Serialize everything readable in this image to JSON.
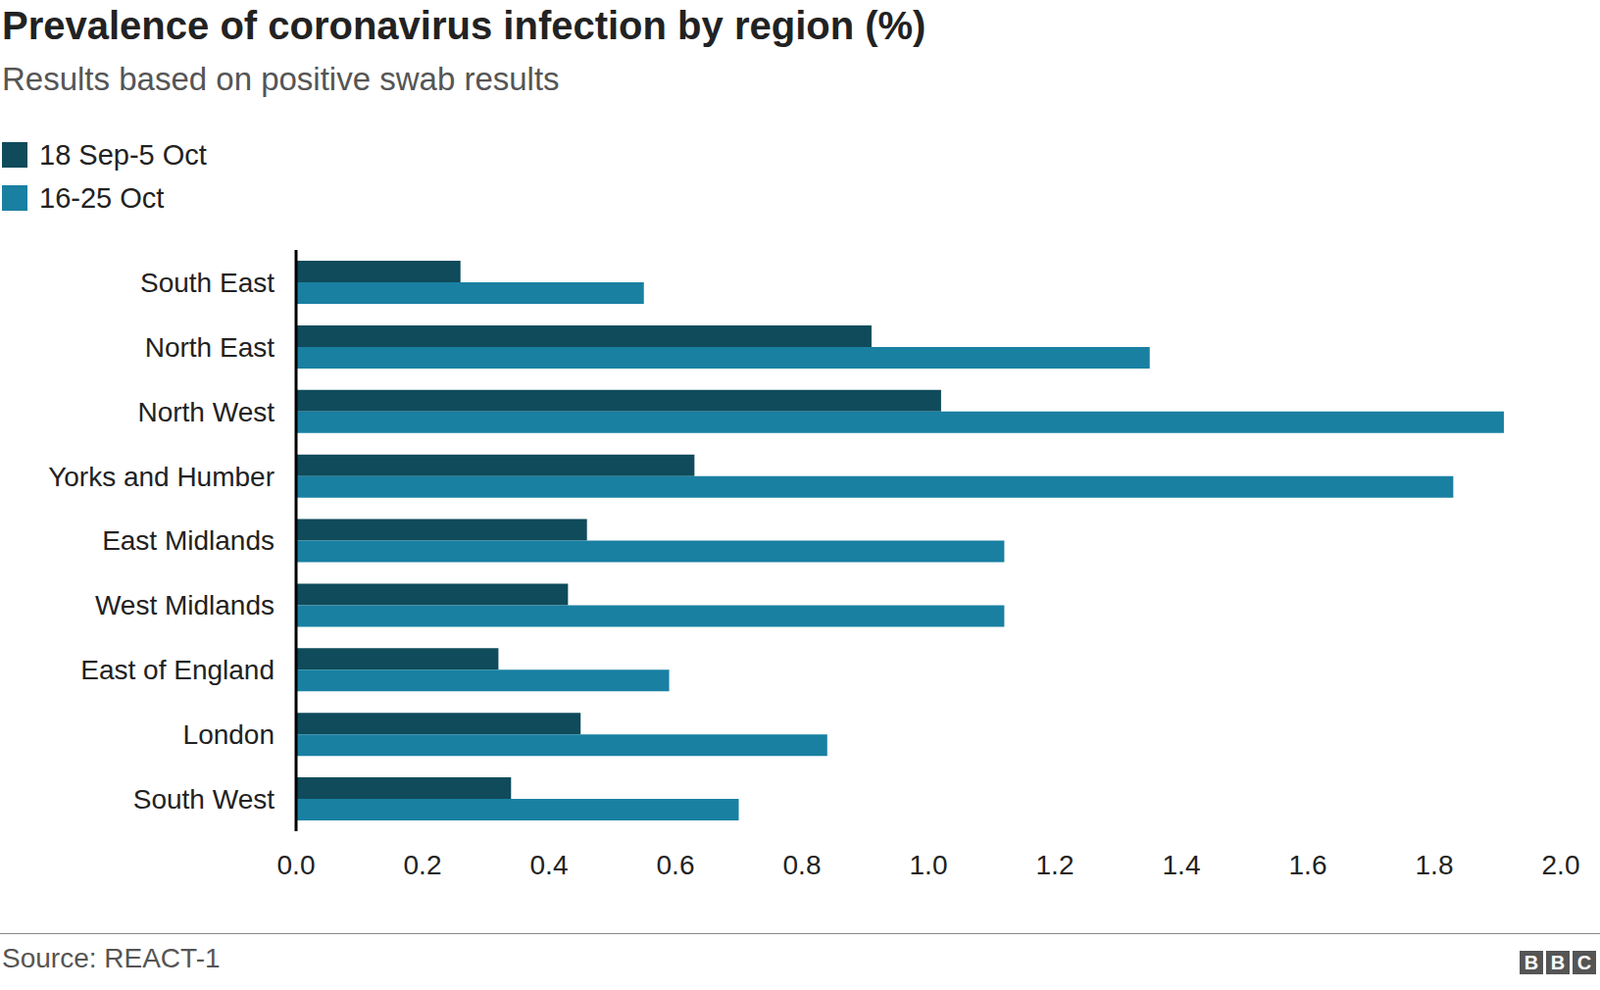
{
  "chart_data": {
    "type": "bar",
    "orientation": "horizontal",
    "title": "Prevalence of coronavirus infection by region (%)",
    "subtitle": "Results based on positive swab results",
    "source": "Source: REACT-1",
    "logo": "BBC",
    "categories": [
      "South East",
      "North East",
      "North West",
      "Yorks  and  Humber",
      "East Midlands",
      "West Midlands",
      "East of England",
      "London",
      "South West"
    ],
    "series": [
      {
        "name": "18 Sep-5 Oct",
        "color": "#0f4b5b",
        "values": [
          0.26,
          0.91,
          1.02,
          0.63,
          0.46,
          0.43,
          0.32,
          0.45,
          0.34
        ]
      },
      {
        "name": "16-25 Oct",
        "color": "#1980a2",
        "values": [
          0.55,
          1.35,
          1.91,
          1.83,
          1.12,
          1.12,
          0.59,
          0.84,
          0.7
        ]
      }
    ],
    "xlim": [
      0,
      2.0
    ],
    "xticks": [
      {
        "value": 0,
        "label": "0.0"
      },
      0.2,
      0.4,
      0.6,
      0.8,
      {
        "value": 1,
        "label": "1.0"
      },
      1.2,
      1.4,
      1.6,
      1.8,
      {
        "value": 2,
        "label": "2.0"
      }
    ],
    "grid": false,
    "legend": "top-left"
  }
}
